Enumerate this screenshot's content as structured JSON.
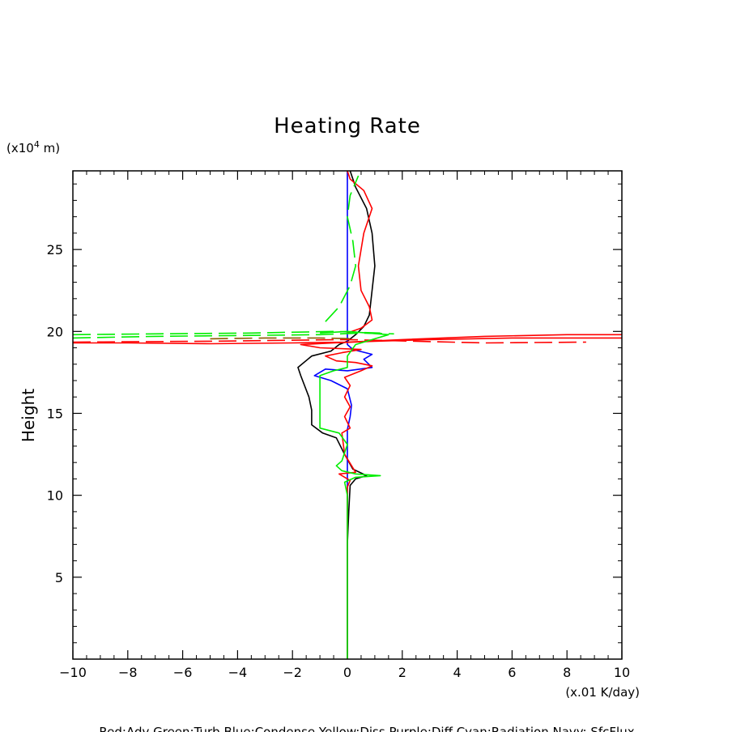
{
  "chart_data": {
    "type": "line",
    "title": "Heating Rate",
    "xlabel": "",
    "ylabel": "Height",
    "x_unit": "(x.01 K/day)",
    "y_unit_prefix": "(x10",
    "y_unit_exp": "4",
    "y_unit_suffix": " m)",
    "xlim": [
      -10,
      10
    ],
    "ylim": [
      0,
      29.8
    ],
    "x_ticks": [
      -10,
      -8,
      -6,
      -4,
      -2,
      0,
      2,
      4,
      6,
      8,
      10
    ],
    "y_ticks": [
      5,
      10,
      15,
      20,
      25
    ],
    "legend_text": "Red:Adv Green:Turb Blue:Condense Yellow:Diss Purple:Diff Cyan:Radiation Navy: SfcFlux",
    "grid": false,
    "series": [
      {
        "color": "#000000",
        "dash": "solid",
        "points": [
          [
            0,
            0
          ],
          [
            0,
            7
          ],
          [
            0.05,
            9
          ],
          [
            0.1,
            10.6
          ],
          [
            0.3,
            11.0
          ],
          [
            0.7,
            11.2
          ],
          [
            0.2,
            11.6
          ],
          [
            -0.1,
            12.5
          ],
          [
            -0.4,
            13.5
          ],
          [
            -0.9,
            13.8
          ],
          [
            -1.3,
            14.3
          ],
          [
            -1.3,
            15.2
          ],
          [
            -1.4,
            16.0
          ],
          [
            -1.7,
            17.3
          ],
          [
            -1.8,
            17.8
          ],
          [
            -1.3,
            18.5
          ],
          [
            -0.6,
            18.8
          ],
          [
            -0.3,
            19.2
          ],
          [
            0,
            19.4
          ],
          [
            0.3,
            19.8
          ],
          [
            0.6,
            20.3
          ],
          [
            0.8,
            21.0
          ],
          [
            0.9,
            22.5
          ],
          [
            1.0,
            24.0
          ],
          [
            0.9,
            26.0
          ],
          [
            0.7,
            27.5
          ],
          [
            0.3,
            28.8
          ],
          [
            0.1,
            29.8
          ]
        ]
      },
      {
        "color": "#0000ff",
        "dash": "solid",
        "points": [
          [
            0,
            0
          ],
          [
            0,
            14.0
          ],
          [
            0.1,
            14.8
          ],
          [
            0.15,
            15.5
          ],
          [
            0,
            16.5
          ],
          [
            -0.6,
            17.0
          ],
          [
            -1.2,
            17.3
          ],
          [
            -0.8,
            17.7
          ],
          [
            0,
            17.6
          ],
          [
            0.9,
            17.8
          ],
          [
            0.6,
            18.3
          ],
          [
            0.9,
            18.6
          ],
          [
            0.2,
            18.9
          ],
          [
            0,
            19.2
          ],
          [
            0,
            29.8
          ]
        ]
      },
      {
        "color": "#ff0000",
        "dash": "solid",
        "points": [
          [
            0,
            0
          ],
          [
            0,
            9
          ],
          [
            0,
            10.5
          ],
          [
            0.1,
            10.9
          ],
          [
            -0.3,
            11.3
          ],
          [
            0.3,
            11.4
          ],
          [
            -0.1,
            12.5
          ],
          [
            -0.2,
            13.8
          ],
          [
            0.1,
            14.1
          ],
          [
            -0.1,
            14.8
          ],
          [
            0.1,
            15.4
          ],
          [
            -0.1,
            16.0
          ],
          [
            0.1,
            16.7
          ],
          [
            -0.1,
            17.2
          ],
          [
            0.5,
            17.6
          ],
          [
            0.9,
            17.9
          ],
          [
            0.3,
            18.1
          ],
          [
            -0.4,
            18.2
          ],
          [
            -0.8,
            18.5
          ],
          [
            -0.2,
            18.7
          ],
          [
            0.5,
            18.9
          ],
          [
            -1.0,
            19.0
          ],
          [
            -1.7,
            19.2
          ],
          [
            -0.5,
            19.3
          ],
          [
            1.0,
            19.4
          ],
          [
            3.0,
            19.5
          ],
          [
            6.0,
            19.6
          ],
          [
            10,
            19.6
          ]
        ]
      },
      {
        "color": "#ff0000",
        "dash": "solid",
        "points": [
          [
            -10,
            19.3
          ],
          [
            -8,
            19.3
          ],
          [
            -5,
            19.25
          ],
          [
            -2,
            19.3
          ],
          [
            0,
            19.35
          ],
          [
            2,
            19.5
          ],
          [
            5,
            19.7
          ],
          [
            8,
            19.8
          ],
          [
            10,
            19.8
          ]
        ]
      },
      {
        "color": "#ff0000",
        "dash": "solid",
        "points": [
          [
            0,
            19.9
          ],
          [
            0.5,
            20.2
          ],
          [
            0.9,
            20.7
          ],
          [
            0.8,
            21.5
          ],
          [
            0.5,
            22.5
          ],
          [
            0.4,
            24.0
          ],
          [
            0.6,
            26.0
          ],
          [
            0.9,
            27.5
          ],
          [
            0.6,
            28.6
          ],
          [
            0.1,
            29.3
          ],
          [
            0,
            29.8
          ]
        ]
      },
      {
        "color": "#ff0000",
        "dash": "dashed",
        "points": [
          [
            -10,
            19.35
          ],
          [
            -5,
            19.4
          ],
          [
            0,
            19.5
          ],
          [
            5,
            19.3
          ],
          [
            8.7,
            19.35
          ]
        ]
      },
      {
        "color": "#00ee00",
        "dash": "solid",
        "points": [
          [
            0,
            0
          ],
          [
            0,
            10.0
          ],
          [
            -0.1,
            10.8
          ],
          [
            0.3,
            11.1
          ],
          [
            1.2,
            11.2
          ],
          [
            0.3,
            11.3
          ],
          [
            -0.2,
            11.5
          ],
          [
            -0.4,
            11.8
          ],
          [
            -0.2,
            12.1
          ],
          [
            -0.1,
            12.6
          ],
          [
            0,
            13.1
          ],
          [
            -0.3,
            13.8
          ],
          [
            -1.0,
            14.1
          ],
          [
            -1.0,
            15.5
          ],
          [
            -1.0,
            17.3
          ],
          [
            -0.5,
            17.6
          ],
          [
            0,
            17.8
          ],
          [
            0,
            18.5
          ],
          [
            0.3,
            19.2
          ],
          [
            1.5,
            19.8
          ],
          [
            0,
            20.0
          ],
          [
            -1.0,
            19.9
          ]
        ]
      },
      {
        "color": "#00ee00",
        "dash": "dashed",
        "points": [
          [
            -10,
            19.6
          ],
          [
            -7,
            19.7
          ],
          [
            -4,
            19.75
          ],
          [
            -1,
            19.8
          ],
          [
            0.5,
            19.9
          ],
          [
            1.7,
            19.85
          ]
        ]
      },
      {
        "color": "#00ee00",
        "dash": "dashed",
        "points": [
          [
            -10,
            19.8
          ],
          [
            -7,
            19.85
          ],
          [
            -3.5,
            19.9
          ],
          [
            -0.5,
            20.0
          ],
          [
            1.2,
            19.9
          ]
        ]
      },
      {
        "color": "#00ee00",
        "dash": "dashed",
        "points": [
          [
            -0.8,
            20.6
          ],
          [
            -0.3,
            21.5
          ],
          [
            0.1,
            22.8
          ],
          [
            0.3,
            24.0
          ],
          [
            0.2,
            25.5
          ],
          [
            0,
            27.0
          ],
          [
            0.1,
            28.3
          ],
          [
            0.4,
            29.5
          ]
        ]
      },
      {
        "color": "#8b5a00",
        "dash": "dashed",
        "points": [
          [
            -5.0,
            19.55
          ],
          [
            -3.0,
            19.6
          ],
          [
            -1.0,
            19.6
          ],
          [
            0.3,
            19.55
          ]
        ]
      }
    ]
  }
}
